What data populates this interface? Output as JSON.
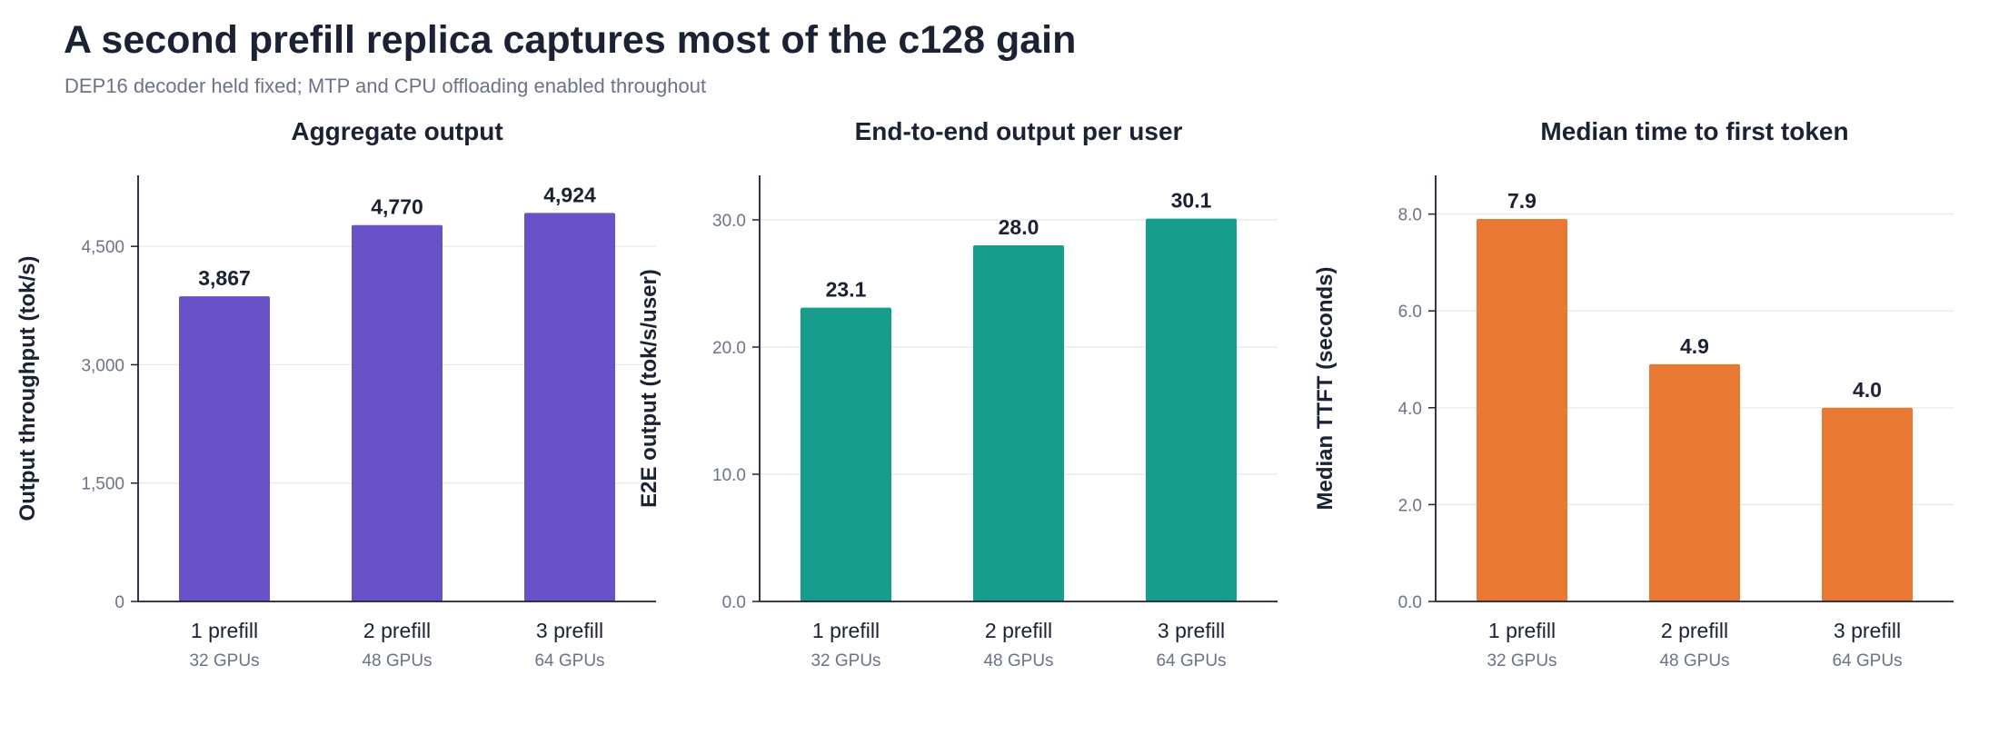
{
  "title": "A second prefill replica captures most of the c128 gain",
  "subtitle": "DEP16 decoder held fixed; MTP and CPU offloading enabled throughout",
  "chart_data": [
    {
      "type": "bar",
      "title": "Aggregate output",
      "ylabel": "Output throughput (tok/s)",
      "categories": [
        "1 prefill",
        "2 prefill",
        "3 prefill"
      ],
      "category_sublabels": [
        "32 GPUs",
        "48 GPUs",
        "64 GPUs"
      ],
      "values": [
        3867,
        4770,
        4924
      ],
      "value_labels": [
        "3,867",
        "4,770",
        "4,924"
      ],
      "ylim": [
        0,
        5400
      ],
      "yticks": [
        0,
        1500,
        3000,
        4500
      ],
      "ytick_labels": [
        "0",
        "1,500",
        "3,000",
        "4,500"
      ],
      "grid": true,
      "color": "#6951c8"
    },
    {
      "type": "bar",
      "title": "End-to-end output per user",
      "ylabel": "E2E output (tok/s/user)",
      "categories": [
        "1 prefill",
        "2 prefill",
        "3 prefill"
      ],
      "category_sublabels": [
        "32 GPUs",
        "48 GPUs",
        "64 GPUs"
      ],
      "values": [
        23.1,
        28.0,
        30.1
      ],
      "value_labels": [
        "23.1",
        "28.0",
        "30.1"
      ],
      "ylim": [
        0,
        33.5
      ],
      "yticks": [
        0,
        10,
        20,
        30
      ],
      "ytick_labels": [
        "0.0",
        "10.0",
        "20.0",
        "30.0"
      ],
      "grid": true,
      "color": "#169d8c"
    },
    {
      "type": "bar",
      "title": "Median time to first token",
      "ylabel": "Median TTFT (seconds)",
      "categories": [
        "1 prefill",
        "2 prefill",
        "3 prefill"
      ],
      "category_sublabels": [
        "32 GPUs",
        "48 GPUs",
        "64 GPUs"
      ],
      "values": [
        7.9,
        4.9,
        4.0
      ],
      "value_labels": [
        "7.9",
        "4.9",
        "4.0"
      ],
      "ylim": [
        0,
        8.8
      ],
      "yticks": [
        0,
        2,
        4,
        6,
        8
      ],
      "ytick_labels": [
        "0.0",
        "2.0",
        "4.0",
        "6.0",
        "8.0"
      ],
      "grid": true,
      "color": "#e97833"
    }
  ]
}
